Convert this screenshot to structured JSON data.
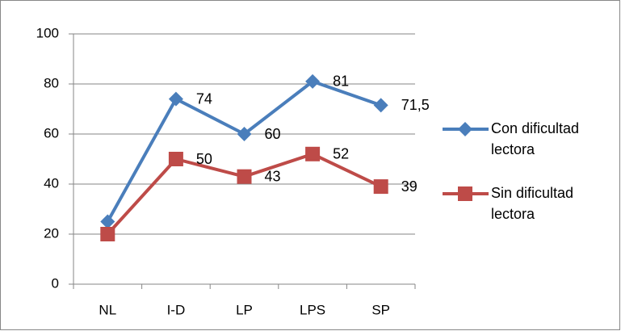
{
  "chart_data": {
    "type": "line",
    "categories": [
      "NL",
      "I-D",
      "LP",
      "LPS",
      "SP"
    ],
    "series": [
      {
        "name": "Con dificultad lectora",
        "color": "#4a7ebb",
        "marker": "diamond",
        "values": [
          25,
          74,
          60,
          81,
          71.5
        ],
        "value_labels": [
          null,
          "74",
          "60",
          "81",
          "71,5"
        ]
      },
      {
        "name": "Sin dificultad lectora",
        "color": "#be4b48",
        "marker": "square",
        "values": [
          20,
          50,
          43,
          52,
          39
        ],
        "value_labels": [
          null,
          "50",
          "43",
          "52",
          "39"
        ]
      }
    ],
    "ylim": [
      0,
      100
    ],
    "yticks": [
      0,
      20,
      40,
      60,
      80,
      100
    ],
    "grid": true,
    "legend": "right"
  }
}
